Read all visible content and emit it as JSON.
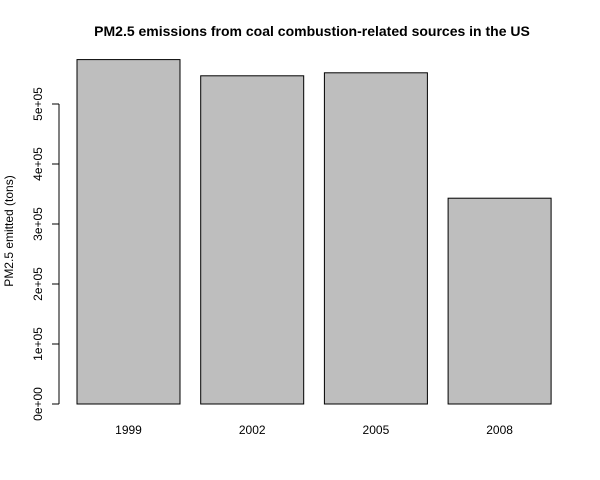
{
  "chart_data": {
    "type": "bar",
    "title": "PM2.5 emissions from coal combustion-related sources in the US",
    "xlabel": "",
    "ylabel": "PM2.5 emitted (tons)",
    "categories": [
      "1999",
      "2002",
      "2005",
      "2008"
    ],
    "values": [
      574000,
      547000,
      552000,
      343000
    ],
    "ylim": [
      0,
      580000
    ],
    "yticks": [
      0,
      100000,
      200000,
      300000,
      400000,
      500000
    ],
    "ytick_labels": [
      "0e+00",
      "1e+05",
      "2e+05",
      "3e+05",
      "4e+05",
      "5e+05"
    ],
    "grid": false,
    "bar_color": "#bebebe",
    "bar_edge_color": "#000000"
  }
}
